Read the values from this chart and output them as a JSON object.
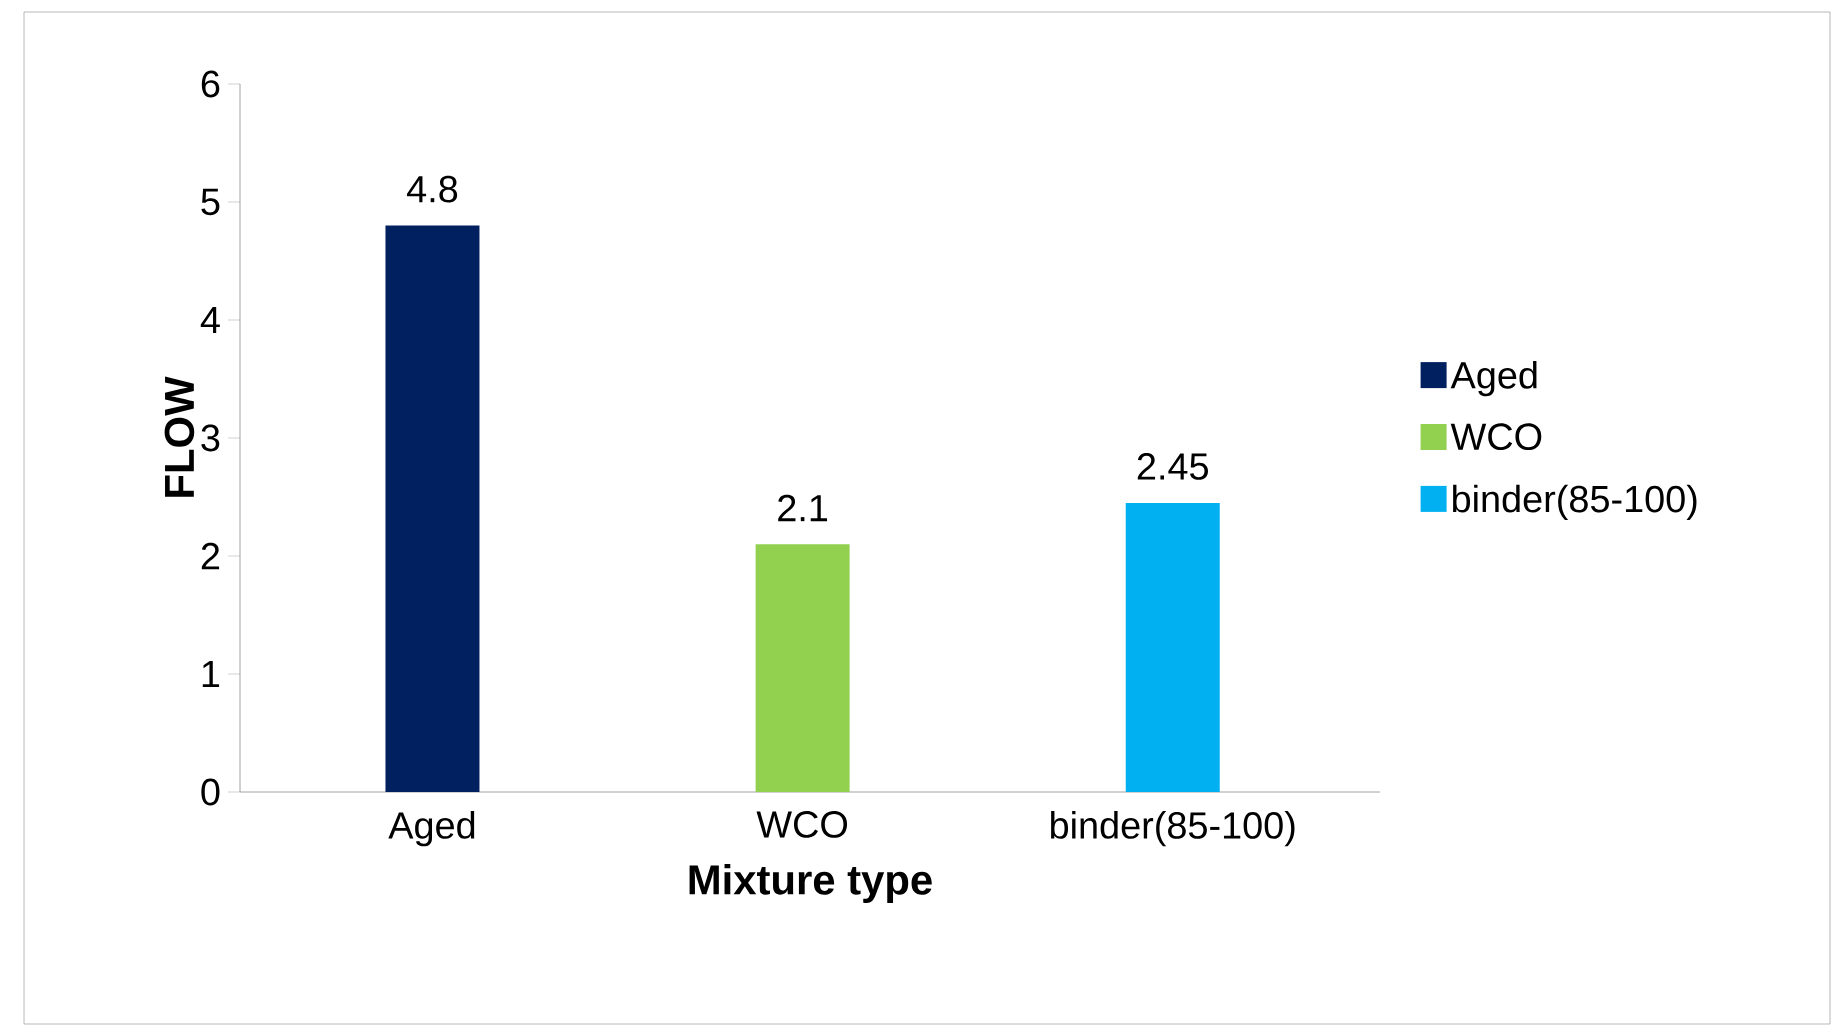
{
  "chart_data": {
    "type": "bar",
    "xlabel": "Mixture type",
    "ylabel": "FLOW",
    "categories": [
      "Aged",
      "WCO",
      "binder(85-100)"
    ],
    "series": [
      {
        "name": "Aged",
        "color": "#002060",
        "values": [
          4.8,
          null,
          null
        ]
      },
      {
        "name": "WCO",
        "color": "#92d050",
        "values": [
          null,
          2.1,
          null
        ]
      },
      {
        "name": "binder(85-100)",
        "color": "#00b0f0",
        "values": [
          null,
          null,
          2.45
        ]
      }
    ],
    "ylim": [
      0,
      6
    ],
    "yticks": [
      0,
      1,
      2,
      3,
      4,
      5,
      6
    ],
    "data_labels": true,
    "legend": "right",
    "grid": false
  }
}
